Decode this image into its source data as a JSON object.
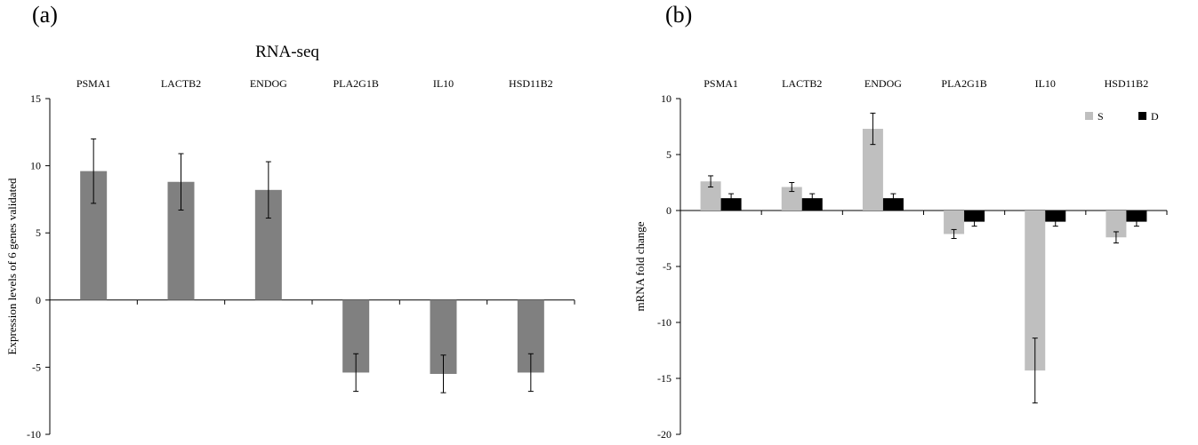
{
  "panels": {
    "a": {
      "label": "(a)"
    },
    "b": {
      "label": "(b)"
    }
  },
  "colors": {
    "panel_a_bar": "#808080",
    "series_S": "#bfbfbf",
    "series_D": "#000000",
    "axis": "#000000",
    "error_bar": "#000000"
  },
  "chart_data": [
    {
      "type": "bar",
      "title": "RNA-seq",
      "xlabel": "",
      "ylabel": "Expression levels of 6 genes validated",
      "categories": [
        "PSMA1",
        "LACTB2",
        "ENDOG",
        "PLA2G1B",
        "IL10",
        "HSD11B2"
      ],
      "category_labels_position": "top",
      "values": [
        9.6,
        8.8,
        8.2,
        -5.4,
        -5.5,
        -5.4
      ],
      "errors": [
        2.4,
        2.1,
        2.1,
        1.4,
        1.4,
        1.4
      ],
      "ylim": [
        -10,
        15
      ],
      "yticks": [
        -10,
        -5,
        0,
        5,
        10,
        15
      ],
      "grid": false,
      "legend": "none"
    },
    {
      "type": "bar",
      "title": "",
      "xlabel": "",
      "ylabel": "mRNA fold change",
      "categories": [
        "PSMA1",
        "LACTB2",
        "ENDOG",
        "PLA2G1B",
        "IL10",
        "HSD11B2"
      ],
      "category_labels_position": "top",
      "series": [
        {
          "name": "S",
          "values": [
            2.6,
            2.1,
            7.3,
            -2.1,
            -14.3,
            -2.4
          ],
          "errors": [
            0.5,
            0.4,
            1.4,
            0.4,
            2.9,
            0.5
          ]
        },
        {
          "name": "D",
          "values": [
            1.1,
            1.1,
            1.1,
            -1.0,
            -1.0,
            -1.0
          ],
          "errors": [
            0.4,
            0.4,
            0.4,
            0.4,
            0.4,
            0.4
          ]
        }
      ],
      "ylim": [
        -20,
        10
      ],
      "yticks": [
        -20,
        -15,
        -10,
        -5,
        0,
        5,
        10
      ],
      "grid": false,
      "legend": "top-right"
    }
  ]
}
